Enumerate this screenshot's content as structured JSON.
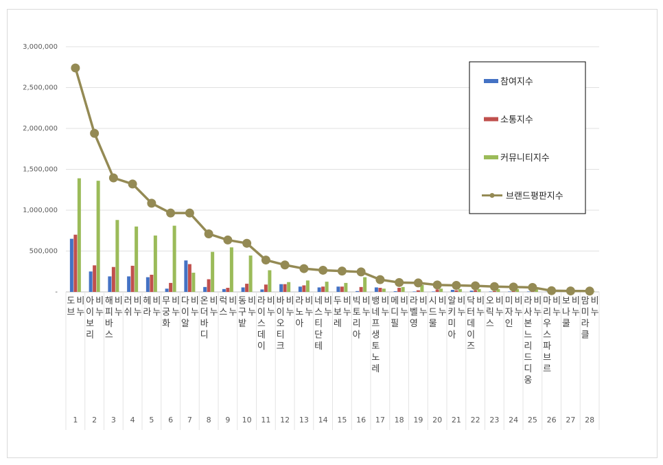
{
  "chart_data": {
    "type": "bar",
    "y_ticks": [
      "-",
      "500,000",
      "1,000,000",
      "1,500,000",
      "2,000,000",
      "2,500,000",
      "3,000,000"
    ],
    "ylim": [
      0,
      3000000
    ],
    "grid": true,
    "legend_position": "top-right",
    "x": [
      "1",
      "2",
      "3",
      "4",
      "5",
      "6",
      "7",
      "8",
      "9",
      "10",
      "11",
      "12",
      "13",
      "14",
      "15",
      "16",
      "17",
      "18",
      "19",
      "20",
      "21",
      "22",
      "23",
      "24",
      "25",
      "26",
      "27",
      "28"
    ],
    "categories": [
      "도브 비누",
      "아이보리 비누",
      "해피바스 비누",
      "러쉬 비누",
      "헤라 비누",
      "무궁화 비누",
      "다이알 비누",
      "온더바디 비누",
      "럭스 비누",
      "동구밭 비누",
      "라이스데이 비누",
      "바이오티크 비누",
      "라노아 비누",
      "네스티단테 비누",
      "두보레 비누",
      "빅토리아 비누",
      "뱅네프생토노레 비누",
      "메디필 비누",
      "라벨영 비누",
      "시드물 비누",
      "알키미아 비누",
      "닥터데이즈 비누",
      "오릭스 비누",
      "미자인 비누",
      "라사본느리드디옹 비누",
      "마리우스파브르 비누",
      "보나쿨 비누",
      "맘미라클 비누"
    ],
    "category_label_lines": [
      [
        "도브",
        "비누"
      ],
      [
        "아이보리",
        "비누"
      ],
      [
        "해피바스",
        "비누"
      ],
      [
        "러쉬",
        "비누"
      ],
      [
        "헤라",
        "비누"
      ],
      [
        "무궁화",
        "비누"
      ],
      [
        "다이알",
        "비누"
      ],
      [
        "온더바디",
        "비누"
      ],
      [
        "럭스",
        "비누"
      ],
      [
        "동구밭",
        "비누"
      ],
      [
        "라이스데이",
        "비누"
      ],
      [
        "바이오티크",
        "비누"
      ],
      [
        "라노아",
        "비누"
      ],
      [
        "네스티단테",
        "비누"
      ],
      [
        "두보레",
        "비누"
      ],
      [
        "빅토리아",
        "비누"
      ],
      [
        "뱅네프생토노레",
        "비누"
      ],
      [
        "메디필",
        "비누"
      ],
      [
        "라벨영",
        "비누"
      ],
      [
        "시드물",
        "비누"
      ],
      [
        "알키미아",
        "비누"
      ],
      [
        "닥터데이즈",
        "비누"
      ],
      [
        "오릭스",
        "비누"
      ],
      [
        "미자인",
        "비누"
      ],
      [
        "라사본느리드디옹",
        "비누"
      ],
      [
        "마리우스파브르",
        "비누"
      ],
      [
        "보나쿨",
        "비누"
      ],
      [
        "맘미라클",
        "비누"
      ]
    ],
    "series": [
      {
        "name": "참여지수",
        "type": "bar",
        "color": "#4472c4",
        "values": [
          650000,
          250000,
          190000,
          190000,
          180000,
          40000,
          385000,
          60000,
          35000,
          55000,
          30000,
          95000,
          65000,
          55000,
          65000,
          10000,
          55000,
          8000,
          5000,
          5000,
          25000,
          15000,
          5000,
          5000,
          5000,
          3000,
          3000,
          3000
        ]
      },
      {
        "name": "소통지수",
        "type": "bar",
        "color": "#c0504d",
        "values": [
          700000,
          325000,
          305000,
          320000,
          210000,
          110000,
          340000,
          155000,
          50000,
          100000,
          90000,
          95000,
          80000,
          65000,
          65000,
          60000,
          50000,
          50000,
          20000,
          30000,
          20000,
          20000,
          10000,
          10000,
          10000,
          5000,
          5000,
          5000
        ]
      },
      {
        "name": "커뮤니티지수",
        "type": "bar",
        "color": "#9bbb59",
        "values": [
          1390000,
          1360000,
          880000,
          800000,
          690000,
          810000,
          235000,
          490000,
          545000,
          445000,
          265000,
          120000,
          140000,
          125000,
          110000,
          180000,
          40000,
          60000,
          85000,
          40000,
          35000,
          35000,
          35000,
          35000,
          35000,
          5000,
          5000,
          5000
        ]
      },
      {
        "name": "브랜드평판지수",
        "type": "line",
        "color": "#948a54",
        "values": [
          2740000,
          1940000,
          1395000,
          1320000,
          1085000,
          965000,
          965000,
          710000,
          635000,
          595000,
          390000,
          330000,
          285000,
          265000,
          255000,
          245000,
          150000,
          115000,
          110000,
          85000,
          80000,
          75000,
          65000,
          60000,
          55000,
          15000,
          12000,
          10000
        ]
      }
    ]
  }
}
